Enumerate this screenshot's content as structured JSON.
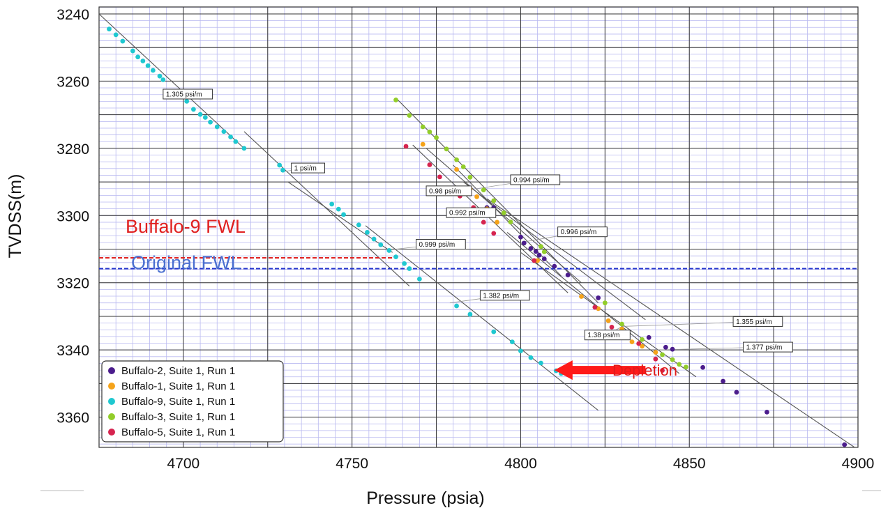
{
  "chart_data": {
    "type": "scatter",
    "xlabel": "Pressure (psia)",
    "ylabel": "TVDSS(m)",
    "xlim": [
      4675,
      4900
    ],
    "ylim": [
      3240,
      3369
    ],
    "y_inverted": true,
    "x_ticks": [
      4700,
      4750,
      4800,
      4850,
      4900
    ],
    "y_ticks": [
      3240,
      3260,
      3280,
      3300,
      3320,
      3340,
      3360
    ],
    "x_tick_labels": [
      "4700",
      "4750",
      "4800",
      "4850",
      "4900"
    ],
    "y_tick_labels": [
      "3240",
      "3260",
      "3280",
      "3300",
      "3320",
      "3340",
      "3360"
    ],
    "grid": "on",
    "legend_placement": "bottom-left",
    "series": [
      {
        "name": "Buffalo-2, Suite 1, Run 1",
        "color": "#4b1c8c",
        "points": [
          [
            4790.0,
            3297.6
          ],
          [
            4792.0,
            3297.6
          ],
          [
            4800.0,
            3306.4
          ],
          [
            4801.0,
            3308.2
          ],
          [
            4803.0,
            3309.8
          ],
          [
            4804.5,
            3310.7
          ],
          [
            4805.5,
            3311.8
          ],
          [
            4807.0,
            3312.9
          ],
          [
            4810.0,
            3315.1
          ],
          [
            4814.0,
            3317.7
          ],
          [
            4823.0,
            3324.5
          ],
          [
            4838.0,
            3336.3
          ],
          [
            4843.0,
            3339.2
          ],
          [
            4845.0,
            3339.8
          ],
          [
            4854.0,
            3345.2
          ],
          [
            4860.0,
            3349.3
          ],
          [
            4864.0,
            3352.6
          ],
          [
            4873.0,
            3358.5
          ],
          [
            4896.0,
            3368.2
          ]
        ]
      },
      {
        "name": "Buffalo-1, Suite 1, Run 1",
        "color": "#f5a31a",
        "points": [
          [
            4771.0,
            3278.8
          ],
          [
            4781.0,
            3286.3
          ],
          [
            4785.0,
            3292.1
          ],
          [
            4787.0,
            3294.4
          ],
          [
            4790.0,
            3298.0
          ],
          [
            4791.0,
            3299.4
          ],
          [
            4793.0,
            3302.0
          ],
          [
            4805.0,
            3313.4
          ],
          [
            4818.0,
            3324.1
          ],
          [
            4823.0,
            3327.7
          ],
          [
            4826.0,
            3331.3
          ],
          [
            4830.0,
            3333.8
          ],
          [
            4833.0,
            3337.6
          ],
          [
            4836.0,
            3338.9
          ],
          [
            4840.0,
            3340.7
          ]
        ]
      },
      {
        "name": "Buffalo-9, Suite 1, Run 1",
        "color": "#1fc8d0",
        "points": [
          [
            4678.0,
            3244.5
          ],
          [
            4680.0,
            3246.2
          ],
          [
            4682.0,
            3248.1
          ],
          [
            4685.0,
            3251.0
          ],
          [
            4686.5,
            3252.8
          ],
          [
            4688.0,
            3254.0
          ],
          [
            4689.5,
            3255.4
          ],
          [
            4691.0,
            3256.8
          ],
          [
            4693.0,
            3258.5
          ],
          [
            4694.0,
            3259.6
          ],
          [
            4699.0,
            3264.4
          ],
          [
            4701.0,
            3266.0
          ],
          [
            4703.0,
            3268.4
          ],
          [
            4705.0,
            3269.9
          ],
          [
            4706.5,
            3270.8
          ],
          [
            4708.0,
            3272.2
          ],
          [
            4710.0,
            3273.6
          ],
          [
            4712.0,
            3275.0
          ],
          [
            4714.0,
            3276.6
          ],
          [
            4715.5,
            3278.0
          ],
          [
            4718.0,
            3280.0
          ],
          [
            4728.5,
            3285.0
          ],
          [
            4729.5,
            3286.5
          ],
          [
            4744.0,
            3296.6
          ],
          [
            4746.0,
            3298.1
          ],
          [
            4747.5,
            3299.7
          ],
          [
            4752.0,
            3302.8
          ],
          [
            4754.5,
            3305.0
          ],
          [
            4756.5,
            3307.0
          ],
          [
            4758.5,
            3308.7
          ],
          [
            4761.0,
            3310.4
          ],
          [
            4763.0,
            3312.3
          ],
          [
            4765.5,
            3314.3
          ],
          [
            4767.0,
            3315.8
          ],
          [
            4770.0,
            3318.9
          ],
          [
            4781.0,
            3326.9
          ],
          [
            4785.0,
            3329.4
          ],
          [
            4792.0,
            3334.6
          ],
          [
            4797.5,
            3337.6
          ],
          [
            4800.0,
            3340.3
          ],
          [
            4803.0,
            3342.3
          ],
          [
            4806.0,
            3343.9
          ],
          [
            4810.5,
            3346.2
          ],
          [
            4812.0,
            3347.0
          ]
        ]
      },
      {
        "name": "Buffalo-3, Suite 1, Run 1",
        "color": "#92cd2a",
        "points": [
          [
            4763.0,
            3265.6
          ],
          [
            4767.0,
            3270.2
          ],
          [
            4771.0,
            3273.6
          ],
          [
            4773.0,
            3275.1
          ],
          [
            4775.0,
            3276.8
          ],
          [
            4778.0,
            3280.2
          ],
          [
            4781.0,
            3283.4
          ],
          [
            4783.0,
            3285.5
          ],
          [
            4785.0,
            3288.6
          ],
          [
            4789.0,
            3292.4
          ],
          [
            4792.0,
            3295.6
          ],
          [
            4795.0,
            3299.2
          ],
          [
            4797.0,
            3301.9
          ],
          [
            4806.0,
            3309.2
          ],
          [
            4807.0,
            3310.8
          ],
          [
            4825.0,
            3326.0
          ],
          [
            4830.0,
            3332.3
          ],
          [
            4836.0,
            3336.9
          ],
          [
            4842.0,
            3341.4
          ],
          [
            4845.0,
            3342.9
          ],
          [
            4847.0,
            3344.3
          ],
          [
            4849.0,
            3345.1
          ]
        ]
      },
      {
        "name": "Buffalo-5, Suite 1, Run 1",
        "color": "#d6244f",
        "points": [
          [
            4766.0,
            3279.4
          ],
          [
            4773.0,
            3284.9
          ],
          [
            4776.0,
            3288.5
          ],
          [
            4780.0,
            3291.8
          ],
          [
            4782.0,
            3294.2
          ],
          [
            4786.0,
            3297.6
          ],
          [
            4789.0,
            3302.0
          ],
          [
            4792.0,
            3305.3
          ],
          [
            4804.0,
            3313.4
          ],
          [
            4822.0,
            3327.3
          ],
          [
            4827.0,
            3333.2
          ],
          [
            4831.0,
            3335.3
          ],
          [
            4835.0,
            3338.1
          ],
          [
            4840.0,
            3342.7
          ],
          [
            4842.0,
            3346.1
          ]
        ]
      }
    ],
    "trend_lines": [
      {
        "from": [
          4675,
          3240
        ],
        "to": [
          4718,
          3280
        ]
      },
      {
        "from": [
          4718,
          3275
        ],
        "to": [
          4767,
          3321
        ]
      },
      {
        "from": [
          4731,
          3290
        ],
        "to": [
          4762,
          3311
        ]
      },
      {
        "from": [
          4754,
          3303
        ],
        "to": [
          4823,
          3358
        ]
      },
      {
        "from": [
          4763,
          3265
        ],
        "to": [
          4823,
          3326
        ]
      },
      {
        "from": [
          4768,
          3279
        ],
        "to": [
          4814,
          3323
        ]
      },
      {
        "from": [
          4772,
          3280
        ],
        "to": [
          4818,
          3320
        ]
      },
      {
        "from": [
          4780,
          3285
        ],
        "to": [
          4812,
          3318
        ]
      },
      {
        "from": [
          4783,
          3290
        ],
        "to": [
          4837,
          3331
        ]
      },
      {
        "from": [
          4796,
          3305
        ],
        "to": [
          4847,
          3347
        ]
      },
      {
        "from": [
          4790,
          3295
        ],
        "to": [
          4899,
          3369
        ]
      },
      {
        "from": [
          4800,
          3311
        ],
        "to": [
          4852,
          3348
        ]
      }
    ],
    "annotations": [
      {
        "text": "1.305 psi/m",
        "x": 4694,
        "y": 3262.4,
        "leader_to": [
          4694,
          3264
        ]
      },
      {
        "text": "1 psi/m",
        "x": 4732,
        "y": 3284.4,
        "leader_to": [
          4729,
          3287
        ]
      },
      {
        "text": "0.999 psi/m",
        "x": 4769,
        "y": 3307.1,
        "leader_to": [
          4763,
          3310
        ]
      },
      {
        "text": "1.382 psi/m",
        "x": 4788,
        "y": 3322.3,
        "leader_to": [
          4779,
          3326
        ]
      },
      {
        "text": "0.994 psi/m",
        "x": 4797,
        "y": 3287.9,
        "leader_to": [
          4787,
          3292
        ]
      },
      {
        "text": "0.98 psi/m",
        "x": 4772,
        "y": 3291.2,
        "leader_to": [
          4785,
          3292
        ]
      },
      {
        "text": "0.992 psi/m",
        "x": 4778,
        "y": 3297.7,
        "leader_to": [
          4788,
          3299
        ]
      },
      {
        "text": "0.996 psi/m",
        "x": 4811,
        "y": 3303.4,
        "leader_to": [
          4800,
          3308
        ]
      },
      {
        "text": "1.355 psi/m",
        "x": 4863,
        "y": 3330.1,
        "leader_to": [
          4830,
          3333
        ]
      },
      {
        "text": "1.38 psi/m",
        "x": 4819,
        "y": 3334.1,
        "leader_to": [
          4830,
          3333
        ]
      },
      {
        "text": "1.377 psi/m",
        "x": 4866,
        "y": 3337.7,
        "leader_to": [
          4840,
          3340
        ]
      }
    ],
    "reference_lines": [
      {
        "label": "Buffalo-9 FWL",
        "y": 3312.6,
        "x_from": 4675,
        "x_to": 4762,
        "color": "#e02020",
        "style": "dashed"
      },
      {
        "label": "Original FWL",
        "y": 3315.8,
        "x_from": 4675,
        "x_to": 4900,
        "color": "#2233cc",
        "style": "dashed"
      }
    ],
    "arrow": {
      "label": "Depletion",
      "from": [
        4837,
        3346
      ],
      "to": [
        4810,
        3346
      ],
      "color": "#ff1a1a"
    }
  }
}
